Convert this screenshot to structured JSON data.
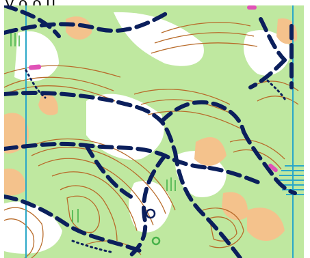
{
  "header": {
    "title_text": "y ρ ρ μ"
  },
  "map": {
    "type": "orienteering-map",
    "colors": {
      "open_land": "#ffffff",
      "rough_open": "#f4c28c",
      "forest": "#bfe8a0",
      "contours": "#b86b2a",
      "tracks": "#0b1f5c",
      "controls": "#e052b7",
      "water": "#3aa7c4",
      "meridian_lines": "#2aa7c8",
      "vegetation_symbols": "#47b24a"
    },
    "symbols": [
      {
        "name": "control-marker",
        "color": "#e052b7"
      },
      {
        "name": "marsh-hatch",
        "color": "#2aa7c8"
      },
      {
        "name": "circle-feature",
        "color": "#0b1f5c"
      },
      {
        "name": "green-feature",
        "color": "#47b24a"
      }
    ]
  }
}
